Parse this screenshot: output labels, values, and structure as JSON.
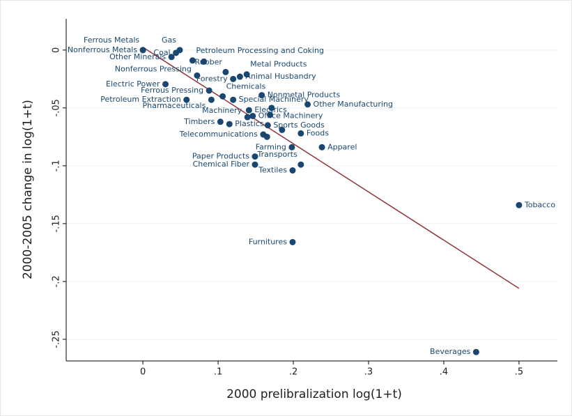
{
  "chart_data": {
    "type": "scatter",
    "x_label": "2000 prelibralization log(1+t)",
    "y_label": "2000-2005 change in log(1+t)",
    "labels": [
      "Ferrous Metals",
      "Nonferrous Metals",
      "Gas",
      "Coal",
      "Other Minerals",
      "Petroleum Processing and Coking",
      null,
      "Nonferrous Pressing",
      "Rubber",
      "Metal Products",
      "Animal Husbandry",
      "Forestry",
      "Electric Power",
      "Ferrous Pressing",
      "Chemicals",
      "Special Machinery",
      "Petroleum Extraction",
      "Pharmaceuticals",
      "Nonmetal Products",
      "Other Manufacturing",
      "Electrics",
      null,
      "Machinery",
      "Office Machinery",
      null,
      "Timbers",
      "Plastics",
      "Sports Goods",
      null,
      "Foods",
      "Telecommunications",
      null,
      "Apparel",
      "Farming",
      "Paper Products",
      "Chemical Fiber",
      "Transports",
      "Textiles",
      "Tobacco",
      "Furnitures",
      "Beverages"
    ],
    "x": [
      0,
      0,
      0.049,
      0.044,
      0.038,
      0.066,
      0.081,
      0.072,
      0.11,
      0.138,
      0.129,
      0.12,
      0.03,
      0.088,
      0.106,
      0.12,
      0.058,
      0.091,
      0.158,
      0.219,
      0.141,
      0.171,
      0.139,
      0.146,
      0.169,
      0.103,
      0.115,
      0.166,
      0.185,
      0.21,
      0.16,
      0.165,
      0.238,
      0.198,
      0.149,
      0.149,
      0.21,
      0.199,
      0.5,
      0.199,
      0.443
    ],
    "y": [
      0,
      0,
      0,
      -0.0024,
      -0.006,
      -0.009,
      -0.01,
      -0.022,
      -0.019,
      -0.021,
      -0.023,
      -0.025,
      -0.0295,
      -0.035,
      -0.04,
      -0.043,
      -0.043,
      -0.043,
      -0.039,
      -0.047,
      -0.052,
      -0.05,
      -0.058,
      -0.057,
      -0.056,
      -0.062,
      -0.064,
      -0.065,
      -0.069,
      -0.072,
      -0.073,
      -0.075,
      -0.084,
      -0.084,
      -0.092,
      -0.099,
      -0.099,
      -0.104,
      -0.134,
      -0.166,
      -0.261
    ],
    "color": "#1a476f",
    "fit": {
      "x": [
        0,
        0.5
      ],
      "y": [
        0.0024,
        -0.206
      ],
      "color": "#90353b"
    },
    "xlim": [
      -0.102,
      0.551
    ],
    "ylim": [
      -0.2687,
      0.027
    ],
    "xticks": [
      0,
      {
        "value": 0.1,
        "label": ".1"
      },
      {
        "value": 0.2,
        "label": ".2"
      },
      {
        "value": 0.3,
        "label": ".3"
      },
      {
        "value": 0.4,
        "label": ".4"
      },
      {
        "value": 0.5,
        "label": ".5"
      }
    ],
    "yticks": [
      0,
      {
        "value": -0.05,
        "label": "-.05"
      },
      {
        "value": -0.1,
        "label": "-.1"
      },
      {
        "value": -0.15,
        "label": "-.15"
      },
      {
        "value": -0.2,
        "label": "-.2"
      },
      {
        "value": -0.25,
        "label": "-.25"
      }
    ],
    "grid": true
  }
}
